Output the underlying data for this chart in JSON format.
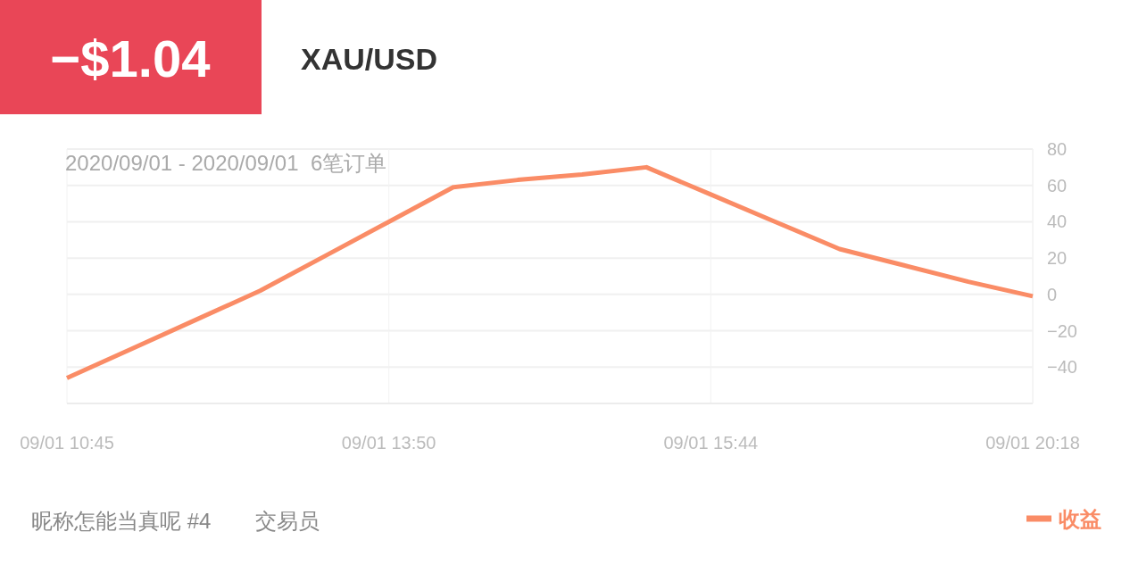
{
  "chart_data": {
    "type": "line",
    "title": "XAU/USD",
    "subtitle": "2020/09/01 - 2020/09/01  6笔订单",
    "annotations": [
      "−$1.04",
      "昵称怎能当真呢 #4",
      "交易员"
    ],
    "categories": [
      "09/01 10:45",
      null,
      null,
      null,
      null,
      "09/01 13:50",
      null,
      null,
      null,
      null,
      "09/01 15:44",
      null,
      null,
      null,
      null,
      "09/01 20:18"
    ],
    "series": [
      {
        "name": "收益",
        "color": "#fa8c66",
        "values": [
          -46,
          -30,
          -14,
          2,
          21,
          40,
          59,
          63,
          66,
          70,
          55,
          40,
          25,
          16,
          7,
          -1
        ]
      }
    ],
    "ylim": [
      -60,
      80
    ],
    "yticks": [
      {
        "value": -60,
        "label": null
      },
      {
        "value": -40,
        "label": "−40"
      },
      {
        "value": -20,
        "label": "−20"
      },
      0,
      20,
      40,
      60,
      80
    ],
    "grid": true,
    "legend": "bottom right"
  }
}
